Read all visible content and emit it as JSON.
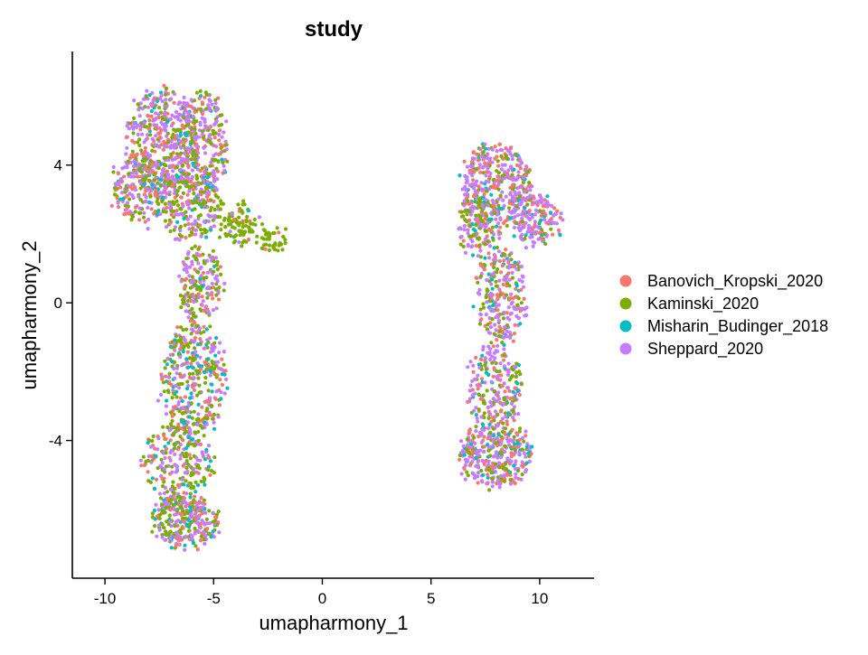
{
  "chart_data": {
    "type": "scatter",
    "title": "study",
    "xlabel": "umapharmony_1",
    "ylabel": "umapharmony_2",
    "xlim": [
      -11.5,
      12.5
    ],
    "ylim": [
      -8,
      7.3
    ],
    "xticks": [
      -10,
      -5,
      0,
      5,
      10
    ],
    "xtick_labels": [
      "-10",
      "-5",
      "0",
      "5",
      "10"
    ],
    "yticks": [
      -4,
      0,
      4
    ],
    "ytick_labels": [
      "-4",
      "0",
      "4"
    ],
    "grid": false,
    "legend_position": "right",
    "series": [
      {
        "name": "Banovich_Kropski_2020",
        "color": "#F8766D"
      },
      {
        "name": "Kaminski_2020",
        "color": "#7CAE00"
      },
      {
        "name": "Misharin_Budinger_2018",
        "color": "#00BFC4"
      },
      {
        "name": "Sheppard_2020",
        "color": "#C77CFF"
      }
    ],
    "clusters": [
      {
        "cx": -7.4,
        "cy": 4.7,
        "rx": 1.6,
        "ry": 1.5,
        "n": 420,
        "w": [
          0.22,
          0.25,
          0.08,
          0.45
        ]
      },
      {
        "cx": -5.6,
        "cy": 4.6,
        "rx": 1.2,
        "ry": 1.6,
        "n": 300,
        "w": [
          0.25,
          0.3,
          0.08,
          0.37
        ]
      },
      {
        "cx": -8.3,
        "cy": 3.3,
        "rx": 1.4,
        "ry": 0.9,
        "n": 220,
        "w": [
          0.25,
          0.3,
          0.07,
          0.38
        ]
      },
      {
        "cx": -6.0,
        "cy": 2.8,
        "rx": 1.4,
        "ry": 1.0,
        "n": 220,
        "w": [
          0.15,
          0.45,
          0.07,
          0.33
        ]
      },
      {
        "cx": -3.8,
        "cy": 2.3,
        "rx": 0.9,
        "ry": 0.55,
        "n": 90,
        "w": [
          0.05,
          0.85,
          0.02,
          0.08
        ]
      },
      {
        "cx": -2.3,
        "cy": 1.75,
        "rx": 0.55,
        "ry": 0.3,
        "n": 45,
        "w": [
          0.03,
          0.95,
          0.0,
          0.02
        ]
      },
      {
        "cx": -5.6,
        "cy": 0.5,
        "rx": 1.0,
        "ry": 1.2,
        "n": 190,
        "w": [
          0.15,
          0.45,
          0.08,
          0.32
        ]
      },
      {
        "cx": -5.9,
        "cy": -2.3,
        "rx": 1.5,
        "ry": 1.6,
        "n": 380,
        "w": [
          0.2,
          0.35,
          0.14,
          0.31
        ]
      },
      {
        "cx": -6.7,
        "cy": -4.6,
        "rx": 1.6,
        "ry": 1.0,
        "n": 220,
        "w": [
          0.2,
          0.4,
          0.1,
          0.3
        ]
      },
      {
        "cx": -6.3,
        "cy": -6.3,
        "rx": 1.5,
        "ry": 0.75,
        "n": 300,
        "w": [
          0.2,
          0.3,
          0.15,
          0.35
        ]
      },
      {
        "cx": 8.0,
        "cy": 3.4,
        "rx": 1.6,
        "ry": 1.2,
        "n": 380,
        "w": [
          0.22,
          0.2,
          0.13,
          0.45
        ]
      },
      {
        "cx": 9.8,
        "cy": 2.4,
        "rx": 1.1,
        "ry": 0.8,
        "n": 160,
        "w": [
          0.3,
          0.12,
          0.1,
          0.48
        ]
      },
      {
        "cx": 7.2,
        "cy": 2.3,
        "rx": 1.0,
        "ry": 0.8,
        "n": 140,
        "w": [
          0.15,
          0.45,
          0.05,
          0.35
        ]
      },
      {
        "cx": 8.2,
        "cy": 0.2,
        "rx": 1.1,
        "ry": 1.4,
        "n": 260,
        "w": [
          0.2,
          0.25,
          0.1,
          0.45
        ]
      },
      {
        "cx": 8.0,
        "cy": -2.5,
        "rx": 1.2,
        "ry": 1.2,
        "n": 230,
        "w": [
          0.2,
          0.25,
          0.1,
          0.45
        ]
      },
      {
        "cx": 8.0,
        "cy": -4.4,
        "rx": 1.7,
        "ry": 0.9,
        "n": 340,
        "w": [
          0.22,
          0.22,
          0.11,
          0.45
        ]
      }
    ]
  }
}
